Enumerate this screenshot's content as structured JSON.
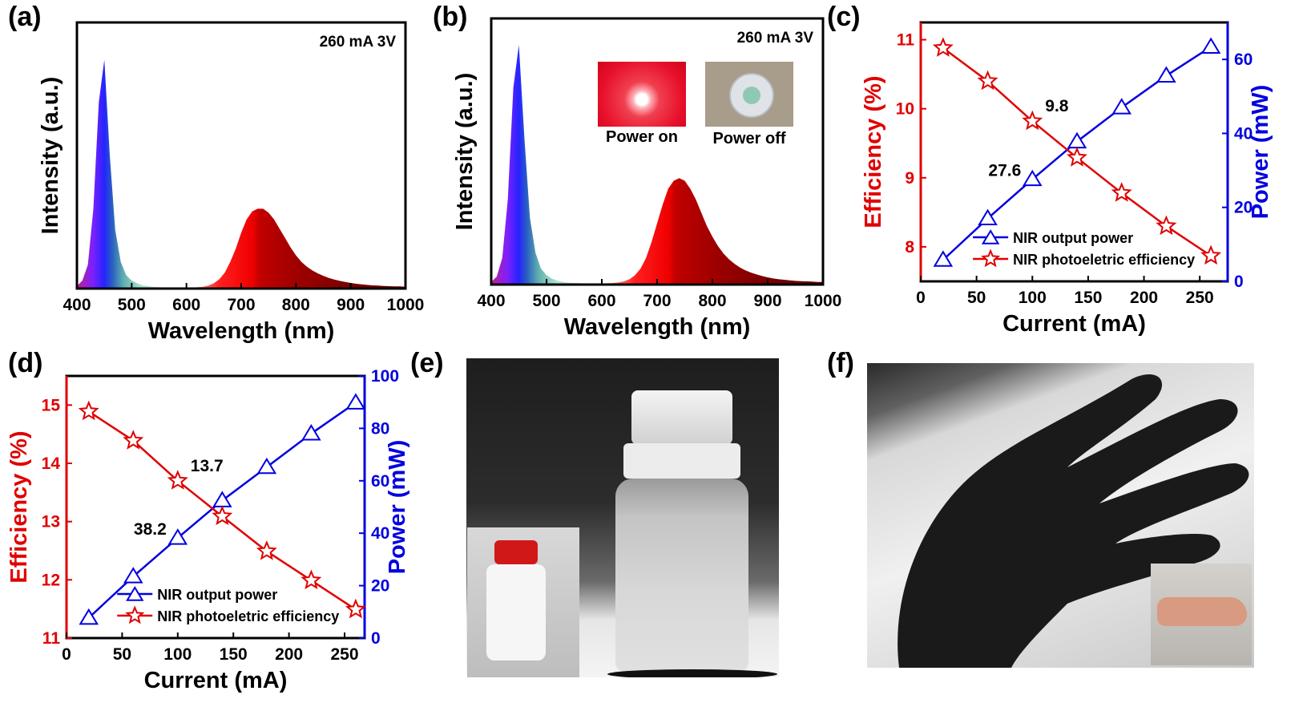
{
  "panel_labels": {
    "a": "(a)",
    "b": "(b)",
    "c": "(c)",
    "d": "(d)",
    "e": "(e)",
    "f": "(f)"
  },
  "colors": {
    "efficiency": "#e00000",
    "power": "#0000e0",
    "axis": "#000000"
  },
  "panel_b_insets": {
    "power_on": "Power on",
    "power_off": "Power off"
  },
  "chart_data": [
    {
      "panel": "(a)",
      "type": "area",
      "xlabel": "Wavelength (nm)",
      "ylabel": "Intensity (a.u.)",
      "annotation": "260 mA   3V",
      "xlim": [
        400,
        1000
      ],
      "ylim": [
        0,
        1
      ],
      "xticks": [
        400,
        500,
        600,
        700,
        800,
        900,
        1000
      ],
      "grid": false,
      "x": [
        400,
        410,
        420,
        430,
        440,
        450,
        460,
        470,
        480,
        490,
        500,
        510,
        520,
        530,
        540,
        550,
        560,
        570,
        580,
        590,
        600,
        610,
        620,
        630,
        640,
        650,
        660,
        670,
        680,
        690,
        700,
        710,
        720,
        730,
        740,
        750,
        760,
        770,
        780,
        790,
        800,
        810,
        820,
        830,
        840,
        850,
        860,
        870,
        880,
        890,
        900,
        910,
        920,
        930,
        940,
        950,
        960,
        970,
        980,
        990,
        1000
      ],
      "y": [
        0.01,
        0.03,
        0.09,
        0.3,
        0.7,
        0.86,
        0.5,
        0.22,
        0.1,
        0.05,
        0.03,
        0.02,
        0.013,
        0.009,
        0.006,
        0.005,
        0.004,
        0.003,
        0.003,
        0.003,
        0.003,
        0.004,
        0.005,
        0.007,
        0.011,
        0.02,
        0.035,
        0.06,
        0.1,
        0.15,
        0.21,
        0.26,
        0.29,
        0.3,
        0.3,
        0.285,
        0.26,
        0.225,
        0.19,
        0.155,
        0.125,
        0.1,
        0.082,
        0.068,
        0.057,
        0.048,
        0.04,
        0.034,
        0.029,
        0.025,
        0.021,
        0.018,
        0.016,
        0.014,
        0.012,
        0.011,
        0.01,
        0.009,
        0.008,
        0.008,
        0.007
      ]
    },
    {
      "panel": "(b)",
      "type": "area",
      "xlabel": "Wavelength (nm)",
      "ylabel": "Intensity (a.u.)",
      "annotation": "260 mA   3V",
      "xlim": [
        400,
        1000
      ],
      "ylim": [
        0,
        1
      ],
      "xticks": [
        400,
        500,
        600,
        700,
        800,
        900,
        1000
      ],
      "grid": false,
      "x": [
        400,
        410,
        420,
        430,
        440,
        450,
        460,
        470,
        480,
        490,
        500,
        510,
        520,
        530,
        540,
        550,
        560,
        570,
        580,
        590,
        600,
        610,
        620,
        630,
        640,
        650,
        660,
        670,
        680,
        690,
        700,
        710,
        720,
        730,
        740,
        750,
        760,
        770,
        780,
        790,
        800,
        810,
        820,
        830,
        840,
        850,
        860,
        870,
        880,
        890,
        900,
        910,
        920,
        930,
        940,
        950,
        960,
        970,
        980,
        990,
        1000
      ],
      "y": [
        0.01,
        0.03,
        0.1,
        0.32,
        0.74,
        0.9,
        0.55,
        0.25,
        0.12,
        0.06,
        0.035,
        0.022,
        0.015,
        0.01,
        0.007,
        0.006,
        0.005,
        0.004,
        0.004,
        0.004,
        0.004,
        0.005,
        0.006,
        0.008,
        0.012,
        0.02,
        0.035,
        0.06,
        0.1,
        0.16,
        0.23,
        0.3,
        0.36,
        0.39,
        0.4,
        0.39,
        0.36,
        0.32,
        0.27,
        0.22,
        0.18,
        0.145,
        0.117,
        0.095,
        0.078,
        0.064,
        0.053,
        0.045,
        0.038,
        0.032,
        0.027,
        0.023,
        0.02,
        0.018,
        0.016,
        0.014,
        0.013,
        0.012,
        0.011,
        0.01,
        0.01
      ]
    },
    {
      "panel": "(c)",
      "type": "line",
      "xlabel": "Current (mA)",
      "ylabel": "Efficiency (%)",
      "y2label": "Power (mW)",
      "xlim": [
        0,
        275
      ],
      "ylim": [
        7.5,
        11.25
      ],
      "y2lim": [
        0,
        70
      ],
      "xticks": [
        0,
        50,
        100,
        150,
        200,
        250
      ],
      "yticks": [
        8,
        9,
        10,
        11
      ],
      "y2ticks": [
        0,
        20,
        40,
        60
      ],
      "grid": false,
      "legend": "bottom-center",
      "x": [
        20,
        60,
        100,
        140,
        180,
        220,
        260
      ],
      "series": [
        {
          "name": "NIR output power",
          "axis": "right",
          "marker": "triangle",
          "color": "#0000e0",
          "values": [
            5.8,
            17.0,
            27.6,
            37.8,
            47.0,
            55.6,
            63.4
          ]
        },
        {
          "name": "NIR photoeletric efficiency",
          "axis": "left",
          "marker": "star",
          "color": "#e00000",
          "values": [
            10.88,
            10.4,
            9.82,
            9.29,
            8.78,
            8.3,
            7.87
          ]
        }
      ],
      "annotations": [
        {
          "text": "9.8",
          "x": 100,
          "series": "NIR photoeletric efficiency"
        },
        {
          "text": "27.6",
          "x": 100,
          "series": "NIR output power"
        }
      ]
    },
    {
      "panel": "(d)",
      "type": "line",
      "xlabel": "Current (mA)",
      "ylabel": "Efficiency (%)",
      "y2label": "Power (mW)",
      "xlim": [
        0,
        268
      ],
      "ylim": [
        11,
        15.5
      ],
      "y2lim": [
        0,
        100
      ],
      "xticks": [
        0,
        50,
        100,
        150,
        200,
        250
      ],
      "yticks": [
        11,
        12,
        13,
        14,
        15
      ],
      "y2ticks": [
        0,
        20,
        40,
        60,
        80,
        100
      ],
      "grid": false,
      "legend": "bottom-center",
      "x": [
        20,
        60,
        100,
        140,
        180,
        220,
        260
      ],
      "series": [
        {
          "name": "NIR output power",
          "axis": "right",
          "marker": "triangle",
          "color": "#0000e0",
          "values": [
            7.7,
            23.5,
            38.2,
            52.5,
            65.2,
            78.0,
            89.8
          ]
        },
        {
          "name": "NIR photoeletric efficiency",
          "axis": "left",
          "marker": "star",
          "color": "#e00000",
          "values": [
            14.89,
            14.39,
            13.7,
            13.09,
            12.49,
            11.99,
            11.49
          ]
        }
      ],
      "annotations": [
        {
          "text": "13.7",
          "x": 100,
          "series": "NIR photoeletric efficiency"
        },
        {
          "text": "38.2",
          "x": 100,
          "series": "NIR output power"
        }
      ]
    }
  ]
}
